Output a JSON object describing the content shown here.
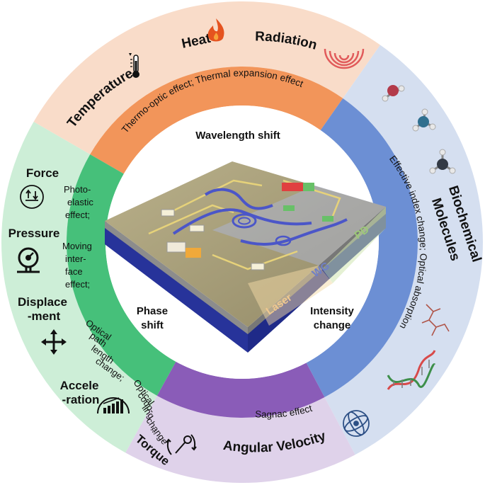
{
  "colors": {
    "thermal_outer": "#f9dcc9",
    "thermal_inner": "#f2955a",
    "bio_outer": "#d5dff0",
    "bio_inner": "#6c8fd4",
    "angular_outer": "#dfd2ea",
    "angular_inner": "#8a5cb8",
    "mechanical_outer": "#cdeed7",
    "mechanical_inner": "#46c07a",
    "chip_top": "#a89f7c",
    "chip_substrate": "#2b3aa6",
    "waveguide": "#4b56c8",
    "laser_zone": "#f3d9a6",
    "wg_zone": "#aeb8e0",
    "pd_zone": "#cfe6b0"
  },
  "outer_labels": {
    "temperature": "Temperature",
    "heat": "Heat",
    "radiation": "Radiation",
    "biochemical_line1": "Biochemical",
    "biochemical_line2": "Molecules",
    "angular_velocity": "Angular Velocity",
    "force": "Force",
    "pressure": "Pressure",
    "displacement_line1": "Displace",
    "displacement_line2": "-ment",
    "acceleration_line1": "Accele",
    "acceleration_line2": "-ration",
    "torque": "Torque"
  },
  "icons": {
    "temperature": "thermometer-icon",
    "heat": "flame-icon",
    "radiation": "radiation-waves-icon",
    "biochemical": "molecule-icon",
    "angular_velocity": "gyroscope-icon",
    "force": "force-icon",
    "pressure": "pressure-gauge-icon",
    "displacement": "four-way-arrow-icon",
    "acceleration": "accelerometer-icon",
    "torque": "wrench-rotation-icon"
  },
  "inner_labels": {
    "thermal": "Thermo-optic effect; Thermal expansion effect",
    "biochemical": "Effective index change; Optical absorption",
    "angular": "Sagnac effect",
    "mechanical": [
      "Photo-",
      "elastic",
      "effect;",
      "Moving",
      "inter-",
      "face",
      "effect;",
      "Optical",
      "path",
      "length",
      "change;",
      "Optical",
      "coup-",
      "ling",
      "change",
      "..."
    ]
  },
  "center_labels": {
    "wavelength_shift": "Wavelength shift",
    "phase_shift_line1": "Phase",
    "phase_shift_line2": "shift",
    "intensity_change_line1": "Intensity",
    "intensity_change_line2": "change"
  },
  "chip_labels": {
    "laser": "Laser",
    "wg": "WG",
    "pd": "PD"
  }
}
